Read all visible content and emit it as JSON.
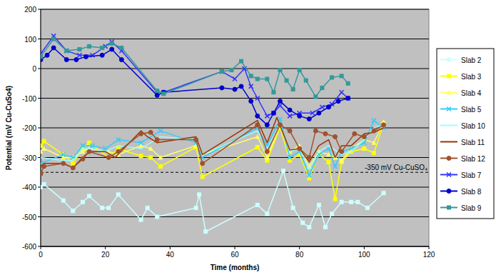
{
  "chart_data": {
    "type": "line",
    "x_label": "Time (months)",
    "y_label": "Potential (mV Cu-CuSo4)",
    "xlim": [
      0,
      120
    ],
    "xticks": [
      0,
      20,
      40,
      60,
      80,
      100,
      120
    ],
    "ylim": [
      -600,
      200
    ],
    "yticks": [
      -600,
      -500,
      -400,
      -300,
      -200,
      -100,
      0,
      100,
      200
    ],
    "grid": true,
    "legend": "right",
    "annotations": [
      {
        "text": "-350 mV Cu-CuSO₄",
        "y": -350,
        "line_style": "dashed"
      }
    ],
    "series": [
      {
        "name": "Slab 2",
        "color": "#ccffff",
        "marker": "square",
        "x": [
          0,
          1,
          7,
          10,
          13,
          15,
          19,
          21,
          24,
          31,
          33,
          36,
          48,
          49,
          51,
          67,
          70,
          75,
          78,
          81,
          83,
          86,
          88,
          90,
          93,
          96,
          98,
          101,
          106
        ],
        "values": [
          -400,
          -390,
          -445,
          -480,
          -450,
          -430,
          -470,
          -470,
          -425,
          -510,
          -470,
          -500,
          -470,
          -425,
          -550,
          -460,
          -490,
          -345,
          -470,
          -520,
          -535,
          -460,
          -535,
          -490,
          -450,
          -450,
          -450,
          -470,
          -420
        ]
      },
      {
        "name": "Slab 3",
        "color": "#ffff00",
        "marker": "square",
        "x": [
          0,
          1,
          7,
          10,
          13,
          15,
          21,
          24,
          31,
          34,
          37,
          48,
          50,
          67,
          70,
          74,
          77,
          80,
          83,
          86,
          89,
          91,
          93,
          96,
          100,
          103,
          106
        ],
        "values": [
          -260,
          -245,
          -290,
          -320,
          -270,
          -250,
          -300,
          -270,
          -295,
          -300,
          -330,
          -265,
          -365,
          -265,
          -310,
          -200,
          -310,
          -290,
          -370,
          -290,
          -315,
          -440,
          -315,
          -280,
          -270,
          -285,
          -185
        ]
      },
      {
        "name": "Slab 4",
        "color": "#ffff66",
        "marker": "triangle",
        "x": [
          0,
          1,
          7,
          10,
          13,
          15,
          21,
          24,
          31,
          34,
          37,
          48,
          50,
          67,
          70,
          74,
          77,
          80,
          83,
          86,
          89,
          91,
          93,
          96,
          100,
          103,
          106
        ],
        "values": [
          -280,
          -270,
          -300,
          -300,
          -280,
          -270,
          -280,
          -290,
          -260,
          -270,
          -300,
          -260,
          -290,
          -230,
          -300,
          -190,
          -280,
          -260,
          -330,
          -280,
          -290,
          -300,
          -310,
          -270,
          -240,
          -250,
          -180
        ]
      },
      {
        "name": "Slab 5",
        "color": "#33ccff",
        "marker": "x",
        "x": [
          0,
          7,
          10,
          13,
          16,
          20,
          24,
          31,
          37,
          48,
          50,
          67,
          70,
          74,
          77,
          80,
          83,
          86,
          89,
          91,
          93,
          96,
          100,
          103,
          106
        ],
        "values": [
          -320,
          -290,
          -300,
          -260,
          -260,
          -270,
          -240,
          -250,
          -210,
          -250,
          -300,
          -200,
          -260,
          -170,
          -300,
          -280,
          -360,
          -290,
          -270,
          -330,
          -280,
          -270,
          -250,
          -175,
          -200
        ]
      },
      {
        "name": "Slab 10",
        "color": "#99ffff",
        "marker": "none",
        "x": [
          0,
          7,
          10,
          13,
          16,
          20,
          24,
          31,
          37,
          48,
          50,
          67,
          70,
          74,
          77,
          80,
          83,
          86,
          89,
          93,
          96,
          100,
          103,
          106
        ],
        "values": [
          -300,
          -310,
          -310,
          -270,
          -270,
          -280,
          -260,
          -270,
          -230,
          -240,
          -290,
          -210,
          -270,
          -190,
          -280,
          -270,
          -340,
          -280,
          -260,
          -290,
          -280,
          -240,
          -200,
          -190
        ]
      },
      {
        "name": "Slab 11",
        "color": "#993300",
        "marker": "none",
        "x": [
          0,
          1,
          7,
          10,
          13,
          15,
          20,
          23,
          31,
          33,
          36,
          48,
          50,
          67,
          70,
          73,
          77,
          80,
          83,
          86,
          89,
          91,
          93,
          96,
          100,
          103,
          106
        ],
        "values": [
          -330,
          -320,
          -320,
          -335,
          -300,
          -280,
          -280,
          -300,
          -210,
          -230,
          -250,
          -230,
          -290,
          -175,
          -250,
          -165,
          -275,
          -270,
          -315,
          -260,
          -240,
          -300,
          -260,
          -260,
          -220,
          -215,
          -200
        ]
      },
      {
        "name": "Slab 12",
        "color": "#a0522d",
        "marker": "circle",
        "x": [
          0,
          1,
          7,
          10,
          13,
          15,
          21,
          24,
          31,
          34,
          36,
          48,
          50,
          67,
          70,
          74,
          77,
          80,
          83,
          85,
          88,
          91,
          93,
          97,
          100,
          103,
          106
        ],
        "values": [
          -355,
          -330,
          -320,
          -335,
          -305,
          -280,
          -300,
          -280,
          -220,
          -215,
          -240,
          -240,
          -320,
          -190,
          -280,
          -190,
          -210,
          -270,
          -300,
          -210,
          -220,
          -230,
          -280,
          -220,
          -230,
          -210,
          -190
        ]
      },
      {
        "name": "Slab 7",
        "color": "#3333ff",
        "marker": "x",
        "x": [
          0,
          4,
          8,
          12,
          16,
          20,
          22,
          25,
          36,
          38,
          56,
          60,
          63,
          65,
          67,
          70,
          72,
          74,
          77,
          80,
          84,
          87,
          90,
          93,
          95
        ],
        "values": [
          50,
          110,
          60,
          45,
          45,
          75,
          90,
          60,
          -80,
          -80,
          -10,
          -35,
          0,
          -60,
          -100,
          -160,
          -150,
          -125,
          -160,
          -150,
          -150,
          -130,
          -120,
          -80,
          -100
        ]
      },
      {
        "name": "Slab 8",
        "color": "#0000cc",
        "marker": "circle",
        "x": [
          0,
          2,
          4,
          8,
          11,
          14,
          19,
          22,
          25,
          36,
          38,
          56,
          60,
          62,
          65,
          67,
          70,
          72,
          74,
          77,
          80,
          83,
          86,
          89,
          92,
          95
        ],
        "values": [
          30,
          45,
          70,
          30,
          30,
          40,
          45,
          65,
          30,
          -90,
          -80,
          -65,
          -70,
          -60,
          -110,
          -160,
          -190,
          -150,
          -110,
          -140,
          -160,
          -170,
          -150,
          -130,
          -110,
          -100
        ]
      },
      {
        "name": "Slab 9",
        "color": "#339999",
        "marker": "square",
        "x": [
          0,
          4,
          8,
          12,
          15,
          19,
          22,
          25,
          36,
          38,
          56,
          59,
          62,
          65,
          67,
          70,
          72,
          74,
          76,
          78,
          80,
          82,
          85,
          87,
          90,
          93,
          95
        ],
        "values": [
          40,
          100,
          60,
          65,
          75,
          70,
          85,
          70,
          -75,
          -85,
          -10,
          -5,
          25,
          -25,
          -35,
          -35,
          -80,
          -5,
          -40,
          -70,
          -5,
          -40,
          -95,
          -65,
          -30,
          -25,
          -50
        ]
      }
    ]
  }
}
